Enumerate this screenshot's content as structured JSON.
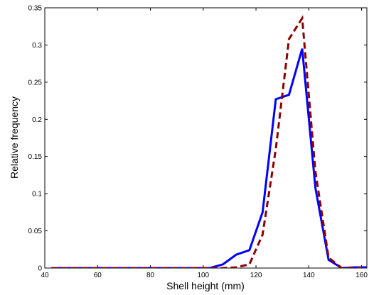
{
  "chart_data": {
    "type": "line",
    "title": "",
    "xlabel": "Shell height (mm)",
    "ylabel": "Relative frequency",
    "xlim": [
      40,
      162
    ],
    "ylim": [
      0,
      0.35
    ],
    "xticks": [
      40,
      60,
      80,
      100,
      120,
      140,
      160
    ],
    "yticks": [
      0,
      0.05,
      0.1,
      0.15,
      0.2,
      0.25,
      0.3,
      0.35
    ],
    "xtick_labels": [
      "40",
      "60",
      "80",
      "100",
      "120",
      "140",
      "160"
    ],
    "ytick_labels": [
      "0",
      "0.05",
      "0.1",
      "0.15",
      "0.2",
      "0.25",
      "0.3",
      "0.35"
    ],
    "grid": false,
    "legend": false,
    "series": [
      {
        "color": "#0000ff",
        "style": "solid",
        "x": [
          42.5,
          102.5,
          107.5,
          112.5,
          117.5,
          122.5,
          127.5,
          132.5,
          137.5,
          142.5,
          147.5,
          152.5,
          157.5,
          162.5
        ],
        "y": [
          0,
          0,
          0.005,
          0.018,
          0.024,
          0.075,
          0.227,
          0.233,
          0.295,
          0.108,
          0.011,
          0,
          0.001,
          0.001
        ]
      },
      {
        "color": "#8b0000",
        "style": "dashed",
        "x": [
          42.5,
          107.5,
          112.5,
          117.5,
          122.5,
          127.5,
          132.5,
          137.5,
          142.5,
          147.5,
          152.5,
          157.5,
          162.5
        ],
        "y": [
          0,
          0,
          0.001,
          0.005,
          0.045,
          0.16,
          0.308,
          0.336,
          0.13,
          0.014,
          0,
          0,
          0
        ]
      }
    ]
  }
}
